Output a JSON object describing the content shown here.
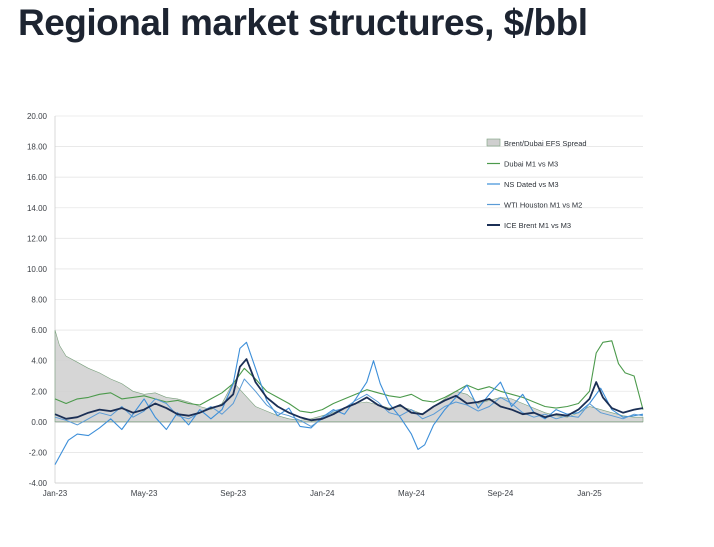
{
  "title": "Regional market structures, $/bbl",
  "colors": {
    "efs_fill": "#cfcfcf",
    "efs_stroke": "#7aa07d",
    "dubai": "#4c9a4c",
    "ns_dated": "#3d8fd9",
    "wti": "#5a9bd6",
    "brent": "#1b2f55",
    "grid": "#e6e6e6",
    "zero": "#9a9a9a"
  },
  "chart_data": {
    "type": "line",
    "title": "Regional market structures, $/bbl",
    "xlabel": "",
    "ylabel": "",
    "ylim": [
      -4,
      20
    ],
    "yticks": [
      -4,
      -2,
      0,
      2,
      4,
      6,
      8,
      10,
      12,
      14,
      16,
      18,
      20
    ],
    "ytick_labels": [
      "-4.00",
      "-2.00",
      "0.00",
      "2.00",
      "4.00",
      "6.00",
      "8.00",
      "10.00",
      "12.00",
      "14.00",
      "16.00",
      "18.00",
      "20.00"
    ],
    "xlim": [
      0,
      26.4
    ],
    "xticks": [
      0,
      4,
      8,
      12,
      16,
      20,
      24
    ],
    "xtick_labels": [
      "Jan-23",
      "May-23",
      "Sep-23",
      "Jan-24",
      "May-24",
      "Sep-24",
      "Jan-25"
    ],
    "x_unit": "months since Jan-2023",
    "legend": [
      "Brent/Dubai EFS Spread",
      "Dubai M1 vs M3",
      "NS Dated vs M3",
      "WTI Houston M1 vs M2",
      "ICE Brent M1 vs M3"
    ],
    "legend_position": "top-right",
    "series": [
      {
        "name": "Brent/Dubai EFS Spread",
        "kind": "area",
        "x": [
          0,
          0.2,
          0.5,
          1,
          1.5,
          2,
          2.5,
          3,
          3.5,
          4,
          4.5,
          5,
          5.5,
          6,
          6.5,
          7,
          7.5,
          8,
          8.5,
          9,
          9.5,
          10,
          10.5,
          11,
          11.5,
          12,
          12.5,
          13,
          13.5,
          14,
          14.5,
          15,
          15.5,
          16,
          16.5,
          17,
          17.5,
          18,
          18.5,
          19,
          19.5,
          20,
          20.5,
          21,
          21.5,
          22,
          22.5,
          23,
          23.5,
          24,
          24.5,
          25,
          25.5,
          26,
          26.4
        ],
        "y": [
          6.0,
          5.0,
          4.3,
          3.9,
          3.5,
          3.2,
          2.8,
          2.5,
          2.0,
          1.8,
          1.9,
          1.6,
          1.5,
          1.3,
          1.0,
          0.8,
          1.2,
          2.6,
          1.8,
          1.0,
          0.7,
          0.4,
          0.2,
          0.1,
          0.2,
          0.4,
          0.6,
          0.9,
          1.2,
          1.3,
          1.1,
          0.9,
          1.0,
          0.8,
          0.5,
          1.0,
          1.5,
          2.0,
          1.8,
          1.2,
          1.4,
          1.6,
          1.5,
          1.2,
          0.9,
          0.6,
          0.4,
          0.3,
          0.6,
          1.0,
          0.8,
          0.6,
          0.4,
          0.3,
          0.3
        ]
      },
      {
        "name": "Dubai M1 vs M3",
        "kind": "line",
        "x": [
          0,
          0.5,
          1,
          1.5,
          2,
          2.5,
          3,
          3.5,
          4,
          4.5,
          5,
          5.5,
          6,
          6.5,
          7,
          7.5,
          8,
          8.5,
          9,
          9.5,
          10,
          10.5,
          11,
          11.5,
          12,
          12.5,
          13,
          13.5,
          14,
          14.5,
          15,
          15.5,
          16,
          16.5,
          17,
          17.5,
          18,
          18.5,
          19,
          19.5,
          20,
          20.5,
          21,
          21.5,
          22,
          22.5,
          23,
          23.5,
          24,
          24.3,
          24.6,
          25,
          25.3,
          25.6,
          26,
          26.4
        ],
        "y": [
          1.5,
          1.2,
          1.5,
          1.6,
          1.8,
          1.9,
          1.5,
          1.6,
          1.7,
          1.5,
          1.3,
          1.4,
          1.2,
          1.1,
          1.5,
          1.9,
          2.5,
          3.5,
          2.8,
          2.0,
          1.6,
          1.2,
          0.7,
          0.6,
          0.8,
          1.2,
          1.5,
          1.8,
          2.1,
          1.9,
          1.7,
          1.6,
          1.8,
          1.4,
          1.3,
          1.6,
          2.0,
          2.4,
          2.1,
          2.3,
          2.0,
          1.8,
          1.6,
          1.3,
          1.0,
          0.9,
          1.0,
          1.2,
          2.0,
          4.5,
          5.2,
          5.3,
          3.8,
          3.2,
          3.0,
          0.8
        ]
      },
      {
        "name": "NS Dated vs M3",
        "kind": "line",
        "x": [
          0,
          0.3,
          0.6,
          1,
          1.5,
          2,
          2.5,
          3,
          3.5,
          4,
          4.5,
          5,
          5.5,
          6,
          6.5,
          7,
          7.5,
          8,
          8.3,
          8.6,
          9,
          9.5,
          10,
          10.5,
          11,
          11.5,
          12,
          12.5,
          13,
          13.5,
          14,
          14.3,
          14.6,
          15,
          15.5,
          16,
          16.3,
          16.6,
          17,
          17.5,
          18,
          18.5,
          19,
          19.5,
          20,
          20.5,
          21,
          21.5,
          22,
          22.5,
          23,
          23.5,
          24,
          24.5,
          25,
          25.5,
          26,
          26.4
        ],
        "y": [
          -2.8,
          -2.0,
          -1.2,
          -0.8,
          -0.9,
          -0.4,
          0.2,
          -0.5,
          0.5,
          1.5,
          0.3,
          -0.5,
          0.6,
          -0.2,
          0.8,
          0.2,
          0.8,
          2.5,
          4.8,
          5.2,
          3.5,
          1.4,
          0.4,
          0.9,
          -0.3,
          -0.4,
          0.3,
          0.8,
          0.5,
          1.5,
          2.6,
          4.0,
          2.5,
          1.2,
          0.3,
          -0.8,
          -1.8,
          -1.5,
          -0.2,
          0.8,
          1.6,
          2.4,
          0.9,
          1.8,
          2.6,
          1.0,
          1.8,
          0.6,
          0.2,
          0.8,
          0.5,
          0.6,
          1.2,
          2.2,
          0.8,
          0.3,
          0.4,
          0.5
        ]
      },
      {
        "name": "WTI Houston M1 vs M2",
        "kind": "line",
        "x": [
          0,
          0.5,
          1,
          1.5,
          2,
          2.5,
          3,
          3.5,
          4,
          4.5,
          5,
          5.5,
          6,
          6.5,
          7,
          7.5,
          8,
          8.5,
          9,
          9.5,
          10,
          10.5,
          11,
          11.5,
          12,
          12.5,
          13,
          13.5,
          14,
          14.5,
          15,
          15.5,
          16,
          16.5,
          17,
          17.5,
          18,
          18.5,
          19,
          19.5,
          20,
          20.5,
          21,
          21.5,
          22,
          22.5,
          23,
          23.5,
          24,
          24.5,
          25,
          25.5,
          26,
          26.4
        ],
        "y": [
          0.3,
          0.1,
          -0.2,
          0.2,
          0.6,
          0.4,
          1.0,
          0.3,
          0.7,
          1.5,
          1.2,
          0.4,
          0.2,
          0.6,
          1.0,
          0.5,
          1.2,
          2.8,
          2.0,
          1.1,
          0.6,
          0.4,
          0.1,
          -0.3,
          0.2,
          0.7,
          0.9,
          1.4,
          1.8,
          1.3,
          0.6,
          0.4,
          0.8,
          0.2,
          0.5,
          1.0,
          1.3,
          1.1,
          0.7,
          1.0,
          1.6,
          1.2,
          0.6,
          0.3,
          0.5,
          0.2,
          0.4,
          0.3,
          1.2,
          0.6,
          0.4,
          0.2,
          0.5,
          0.4
        ]
      },
      {
        "name": "ICE Brent M1 vs M3",
        "kind": "line",
        "x": [
          0,
          0.5,
          1,
          1.5,
          2,
          2.5,
          3,
          3.5,
          4,
          4.5,
          5,
          5.5,
          6,
          6.5,
          7,
          7.5,
          8,
          8.3,
          8.6,
          9,
          9.5,
          10,
          10.5,
          11,
          11.5,
          12,
          12.5,
          13,
          13.5,
          14,
          14.5,
          15,
          15.5,
          16,
          16.5,
          17,
          17.5,
          18,
          18.5,
          19,
          19.5,
          20,
          20.5,
          21,
          21.5,
          22,
          22.5,
          23,
          23.5,
          24,
          24.3,
          24.6,
          25,
          25.5,
          26,
          26.4
        ],
        "y": [
          0.5,
          0.2,
          0.3,
          0.6,
          0.8,
          0.7,
          0.9,
          0.6,
          0.8,
          1.2,
          0.9,
          0.5,
          0.4,
          0.6,
          0.9,
          1.1,
          1.8,
          3.6,
          4.1,
          2.6,
          1.6,
          1.0,
          0.6,
          0.3,
          0.1,
          0.2,
          0.5,
          0.9,
          1.2,
          1.6,
          1.1,
          0.8,
          1.1,
          0.6,
          0.5,
          1.0,
          1.4,
          1.7,
          1.2,
          1.3,
          1.5,
          1.0,
          0.8,
          0.5,
          0.6,
          0.3,
          0.5,
          0.4,
          0.8,
          1.5,
          2.6,
          1.6,
          0.9,
          0.6,
          0.8,
          0.9
        ]
      }
    ]
  }
}
